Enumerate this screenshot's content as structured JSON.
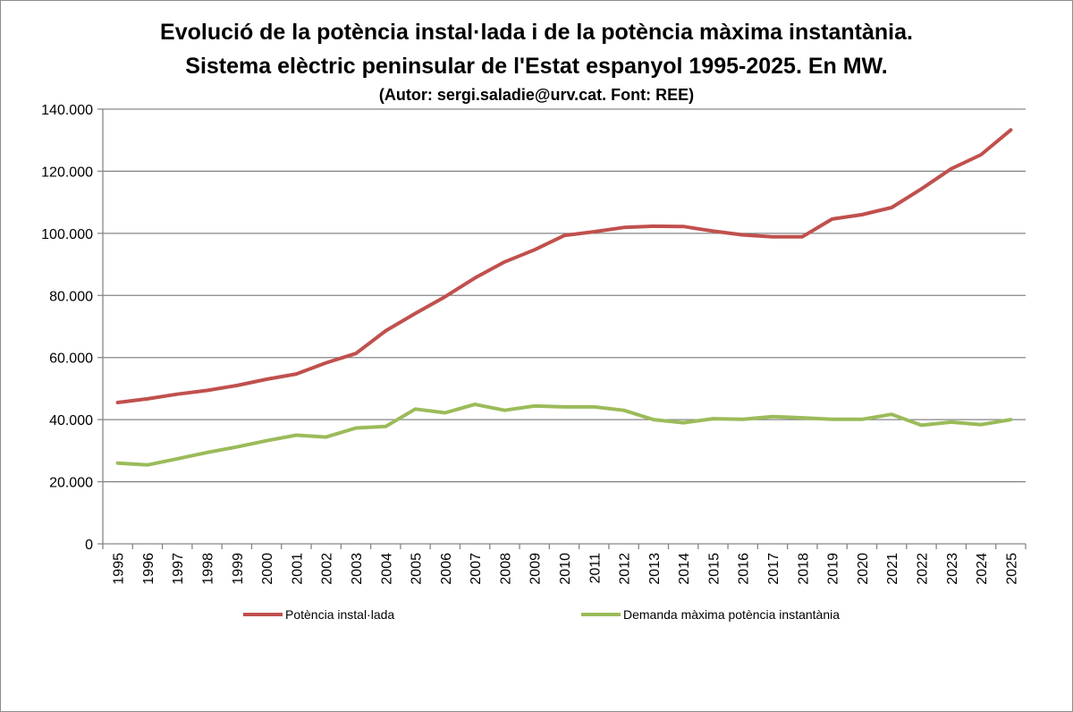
{
  "chart_data": {
    "type": "line",
    "title": "Evolució de la potència instal·lada i de la potència màxima instantània.",
    "subtitle": "Sistema elèctric peninsular de l'Estat espanyol 1995-2025. En MW.",
    "note": "(Autor: sergi.saladie@urv.cat. Font: REE)",
    "xlabel": "",
    "ylabel": "",
    "ylim": [
      0,
      140000
    ],
    "yticks": [
      0,
      20000,
      40000,
      60000,
      80000,
      100000,
      120000,
      140000
    ],
    "ytick_labels": [
      "0",
      "20.000",
      "40.000",
      "60.000",
      "80.000",
      "100.000",
      "120.000",
      "140.000"
    ],
    "grid": true,
    "legend_position": "bottom",
    "categories": [
      "1995",
      "1996",
      "1997",
      "1998",
      "1999",
      "2000",
      "2001",
      "2002",
      "2003",
      "2004",
      "2005",
      "2006",
      "2007",
      "2008",
      "2009",
      "2010",
      "2011",
      "2012",
      "2013",
      "2014",
      "2015",
      "2016",
      "2017",
      "2018",
      "2019",
      "2020",
      "2021",
      "2022",
      "2023",
      "2024",
      "2025"
    ],
    "series": [
      {
        "name": "Potència instal·lada",
        "color": "#c0504d",
        "values": [
          45500,
          46700,
          48200,
          49400,
          51000,
          53000,
          54700,
          58300,
          61300,
          68600,
          74200,
          79600,
          85600,
          90800,
          94700,
          99300,
          100500,
          101900,
          102300,
          102200,
          100700,
          99500,
          98900,
          98900,
          104600,
          106000,
          108300,
          114300,
          120800,
          125300,
          133300
        ]
      },
      {
        "name": "Demanda màxima potència instantània",
        "color": "#9bbb59",
        "values": [
          26000,
          25400,
          27400,
          29400,
          31200,
          33200,
          35000,
          34400,
          37300,
          37800,
          43400,
          42200,
          44900,
          43000,
          44400,
          44100,
          44100,
          43000,
          40000,
          39000,
          40300,
          40100,
          41000,
          40600,
          40100,
          40100,
          41700,
          38200,
          39200,
          38400,
          40000
        ]
      }
    ]
  }
}
